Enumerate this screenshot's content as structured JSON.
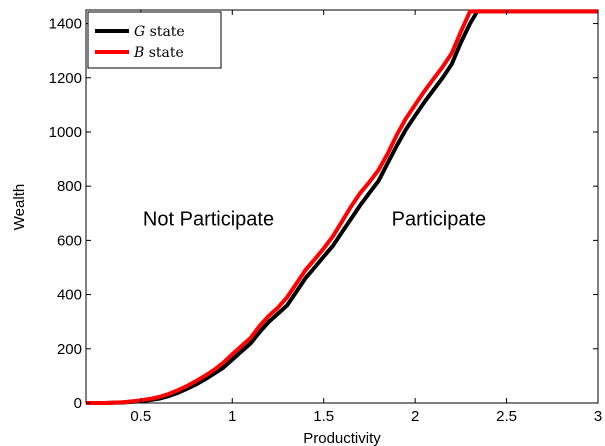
{
  "chart_data": {
    "type": "line",
    "title": "",
    "xlabel": "Productivity",
    "ylabel": "Wealth",
    "xlim": [
      0.2,
      3.0
    ],
    "ylim": [
      0,
      1450
    ],
    "xticks": [
      0.5,
      1,
      1.5,
      2,
      2.5,
      3
    ],
    "xtick_labels": [
      "0.5",
      "1",
      "1.5",
      "2",
      "2.5",
      "3"
    ],
    "yticks": [
      0,
      200,
      400,
      600,
      800,
      1000,
      1200,
      1400
    ],
    "ytick_labels": [
      "0",
      "200",
      "400",
      "600",
      "800",
      "1000",
      "1200",
      "1400"
    ],
    "grid": false,
    "legend_position": "top-left",
    "annotations": [
      {
        "text": "Not Participate",
        "x": 0.87,
        "y": 680
      },
      {
        "text": "Participate",
        "x": 2.13,
        "y": 680
      }
    ],
    "series": [
      {
        "name_symbol": "G",
        "name_suffix": " state",
        "color": "#000000",
        "x": [
          0.2,
          0.3,
          0.4,
          0.45,
          0.5,
          0.55,
          0.6,
          0.65,
          0.7,
          0.75,
          0.8,
          0.85,
          0.9,
          0.95,
          1.0,
          1.05,
          1.1,
          1.15,
          1.2,
          1.25,
          1.3,
          1.35,
          1.4,
          1.45,
          1.5,
          1.55,
          1.6,
          1.65,
          1.7,
          1.75,
          1.8,
          1.85,
          1.9,
          1.95,
          2.0,
          2.05,
          2.1,
          2.15,
          2.2,
          2.25,
          2.3,
          2.34,
          2.4,
          2.5,
          2.6,
          2.7,
          2.8,
          2.9,
          3.0
        ],
        "y": [
          0,
          0,
          2,
          4,
          7,
          11,
          16,
          25,
          37,
          52,
          68,
          87,
          108,
          130,
          160,
          190,
          220,
          262,
          300,
          330,
          360,
          410,
          460,
          500,
          540,
          580,
          630,
          680,
          730,
          775,
          820,
          885,
          950,
          1010,
          1060,
          1110,
          1155,
          1200,
          1250,
          1330,
          1400,
          1445,
          1445,
          1445,
          1445,
          1445,
          1445,
          1445,
          1445
        ]
      },
      {
        "name_symbol": "B",
        "name_suffix": " state",
        "color": "#ff0000",
        "x": [
          0.2,
          0.3,
          0.4,
          0.45,
          0.5,
          0.55,
          0.6,
          0.65,
          0.7,
          0.75,
          0.8,
          0.85,
          0.9,
          0.95,
          1.0,
          1.05,
          1.1,
          1.15,
          1.2,
          1.25,
          1.3,
          1.35,
          1.4,
          1.45,
          1.5,
          1.55,
          1.6,
          1.65,
          1.7,
          1.75,
          1.8,
          1.85,
          1.9,
          1.95,
          2.0,
          2.05,
          2.1,
          2.15,
          2.2,
          2.25,
          2.3,
          2.32,
          2.4,
          2.5,
          2.6,
          2.7,
          2.8,
          2.9,
          3.0
        ],
        "y": [
          0,
          0,
          3,
          6,
          10,
          15,
          22,
          33,
          46,
          62,
          80,
          100,
          122,
          148,
          180,
          210,
          240,
          285,
          322,
          352,
          390,
          440,
          490,
          530,
          570,
          615,
          670,
          725,
          775,
          815,
          860,
          920,
          990,
          1050,
          1100,
          1150,
          1195,
          1240,
          1290,
          1370,
          1445,
          1445,
          1445,
          1445,
          1445,
          1445,
          1445,
          1445,
          1445
        ]
      }
    ]
  }
}
